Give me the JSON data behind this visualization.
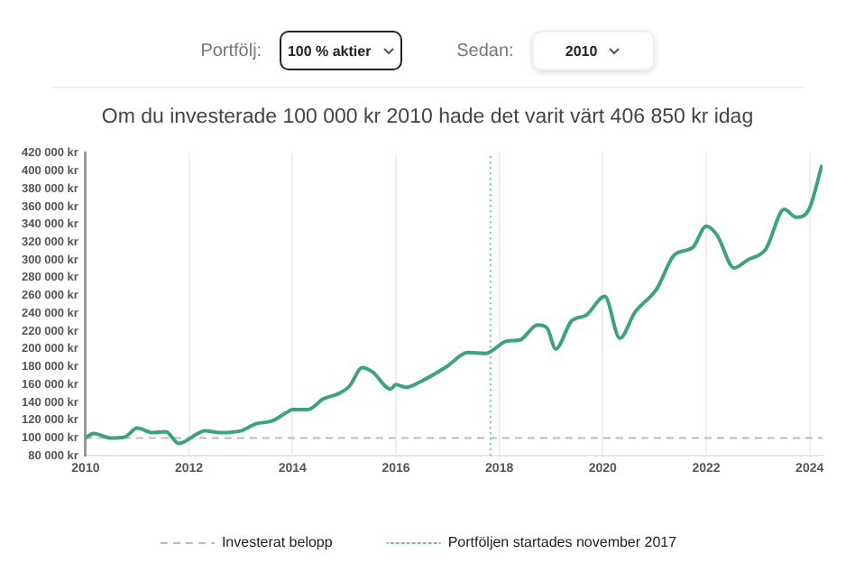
{
  "chart_data": {
    "type": "line",
    "title": "Om du investerade 100 000 kr 2010 hade det varit värt 406 850 kr idag",
    "annotations": [
      "Portfölj:",
      "100 % aktier",
      "Sedan:",
      "2010"
    ],
    "series": [
      {
        "color": "#3fa27e",
        "x": [
          2010.0,
          2010.15,
          2010.5,
          2010.75,
          2011.0,
          2011.3,
          2011.55,
          2011.8,
          2012.2,
          2012.3,
          2012.6,
          2013.0,
          2013.3,
          2013.6,
          2013.9,
          2014.0,
          2014.3,
          2014.6,
          2014.9,
          2015.1,
          2015.35,
          2015.55,
          2015.9,
          2016.0,
          2016.2,
          2016.5,
          2016.98,
          2017.39,
          2017.74,
          2018.15,
          2018.39,
          2018.74,
          2018.92,
          2019.09,
          2019.39,
          2019.68,
          2020.04,
          2020.33,
          2020.62,
          2021.04,
          2021.39,
          2021.74,
          2022.0,
          2022.21,
          2022.54,
          2022.8,
          2023.15,
          2023.51,
          2023.74,
          2023.98,
          2024.24
        ],
        "values": [
          100000,
          105000,
          100000,
          101000,
          111000,
          106000,
          107000,
          94000,
          106000,
          108000,
          106000,
          108000,
          116000,
          119000,
          129000,
          132000,
          132000,
          144000,
          150000,
          158000,
          179000,
          174000,
          155000,
          160000,
          157000,
          164000,
          180000,
          196000,
          195000,
          209000,
          210000,
          227000,
          224000,
          200000,
          231000,
          238000,
          259000,
          212000,
          241000,
          267000,
          306000,
          314000,
          338000,
          328000,
          291000,
          300000,
          312000,
          357000,
          348000,
          356000,
          406850
        ]
      }
    ],
    "xlim": [
      2010,
      2024.25
    ],
    "xticks": [
      2010,
      2012,
      2014,
      2016,
      2018,
      2020,
      2022,
      2024
    ],
    "ylim": [
      80000,
      420000
    ],
    "yticks": [
      {
        "value": 80000,
        "label": "80 000 kr"
      },
      {
        "value": 100000,
        "label": "100 000 kr"
      },
      {
        "value": 120000,
        "label": "120 000 kr"
      },
      {
        "value": 140000,
        "label": "140 000 kr"
      },
      {
        "value": 160000,
        "label": "160 000 kr"
      },
      {
        "value": 180000,
        "label": "180 000 kr"
      },
      {
        "value": 200000,
        "label": "200 000 kr"
      },
      {
        "value": 220000,
        "label": "220 000 kr"
      },
      {
        "value": 240000,
        "label": "240 000 kr"
      },
      {
        "value": 260000,
        "label": "260 000 kr"
      },
      {
        "value": 280000,
        "label": "280 000 kr"
      },
      {
        "value": 300000,
        "label": "300 000 kr"
      },
      {
        "value": 320000,
        "label": "320 000 kr"
      },
      {
        "value": 340000,
        "label": "340 000 kr"
      },
      {
        "value": 360000,
        "label": "360 000 kr"
      },
      {
        "value": 380000,
        "label": "380 000 kr"
      },
      {
        "value": 400000,
        "label": "400 000 kr"
      },
      {
        "value": 420000,
        "label": "420 000 kr"
      }
    ],
    "ref_lines": [
      {
        "axis": "y",
        "value": 100000,
        "label": "Investerat belopp",
        "color": "#bbbbbb",
        "line_style": "dashed"
      },
      {
        "axis": "x",
        "value": 2017.83,
        "label": "Portföljen startades november 2017",
        "color": "#6cc4a4",
        "line_style": "dotted"
      }
    ],
    "grid": "x",
    "legend": "bottom",
    "marker": "none",
    "line_style": "solid"
  }
}
